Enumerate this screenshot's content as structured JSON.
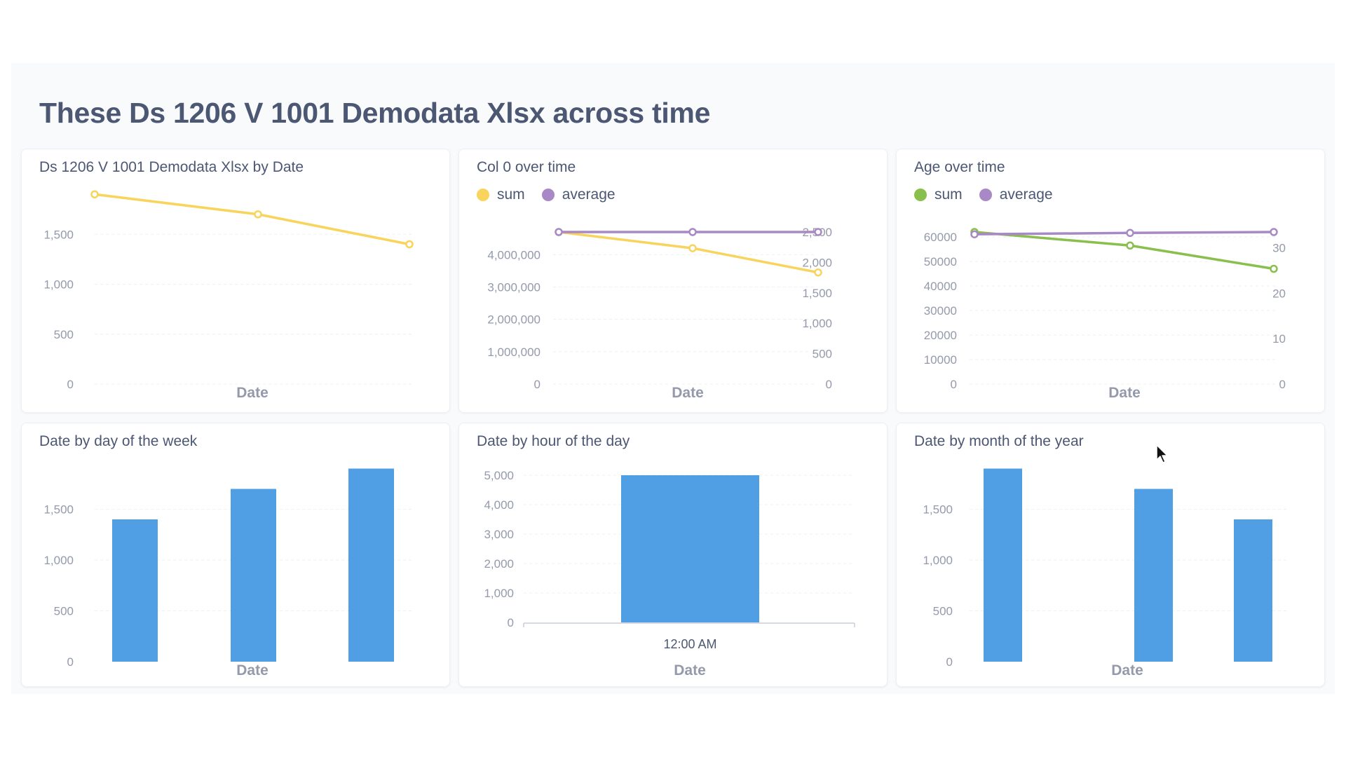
{
  "dashboard": {
    "title": "These Ds 1206 V 1001 Demodata Xlsx across time"
  },
  "colors": {
    "yellow": "#f9d45c",
    "purple": "#a989c5",
    "green": "#88bf4d",
    "blue": "#509ee3",
    "text": "#4c5773",
    "axis": "#949aab",
    "grid": "#eceff3"
  },
  "chart_data": [
    {
      "id": "c1",
      "type": "line",
      "title": "Ds 1206 V 1001 Demodata Xlsx by Date",
      "xlabel": "Date",
      "ylim": [
        0,
        2000
      ],
      "y_ticks": [
        0,
        500,
        1000,
        1500
      ],
      "y_tick_labels": [
        "0",
        "500",
        "1,000",
        "1,500"
      ],
      "series": [
        {
          "color": "#f9d45c",
          "values": [
            1900,
            1700,
            1400
          ]
        }
      ]
    },
    {
      "id": "c2",
      "type": "line",
      "title": "Col 0 over time",
      "xlabel": "Date",
      "legend": [
        "sum",
        "average"
      ],
      "left_ylim": [
        0,
        4700000
      ],
      "left_ticks": [
        0,
        1000000,
        2000000,
        3000000,
        4000000
      ],
      "left_tick_labels": [
        "0",
        "1,000,000",
        "2,000,000",
        "3,000,000",
        "4,000,000"
      ],
      "right_ylim": [
        0,
        2500
      ],
      "right_ticks": [
        0,
        500,
        1000,
        1500,
        2000,
        2500
      ],
      "right_tick_labels": [
        "0",
        "500",
        "1,000",
        "1,500",
        "2,000",
        "2,500"
      ],
      "series": [
        {
          "name": "sum",
          "color": "#f9d45c",
          "axis": "left",
          "values": [
            4700000,
            4200000,
            3450000
          ]
        },
        {
          "name": "average",
          "color": "#a989c5",
          "axis": "right",
          "values": [
            2500,
            2500,
            2500
          ]
        }
      ]
    },
    {
      "id": "c3",
      "type": "line",
      "title": "Age over time",
      "xlabel": "Date",
      "legend": [
        "sum",
        "average"
      ],
      "left_ylim": [
        0,
        62000
      ],
      "left_ticks": [
        0,
        10000,
        20000,
        30000,
        40000,
        50000,
        60000
      ],
      "left_tick_labels": [
        "0",
        "10000",
        "20000",
        "30000",
        "40000",
        "50000",
        "60000"
      ],
      "right_ylim": [
        0,
        33.5
      ],
      "right_ticks": [
        0,
        10,
        20,
        30
      ],
      "right_tick_labels": [
        "0",
        "10",
        "20",
        "30"
      ],
      "series": [
        {
          "name": "sum",
          "color": "#88bf4d",
          "axis": "left",
          "values": [
            62000,
            56500,
            47000
          ]
        },
        {
          "name": "average",
          "color": "#a989c5",
          "axis": "right",
          "values": [
            33,
            33.3,
            33.5
          ]
        }
      ]
    },
    {
      "id": "c4",
      "type": "bar",
      "title": "Date by day of the week",
      "xlabel": "Date",
      "ylim": [
        0,
        2000
      ],
      "y_ticks": [
        0,
        500,
        1000,
        1500
      ],
      "y_tick_labels": [
        "0",
        "500",
        "1,000",
        "1,500"
      ],
      "values": [
        1400,
        1700,
        1900
      ],
      "color": "#509ee3"
    },
    {
      "id": "c5",
      "type": "bar",
      "title": "Date by hour of the day",
      "xlabel": "Date",
      "ylim": [
        0,
        5000
      ],
      "y_ticks": [
        0,
        1000,
        2000,
        3000,
        4000,
        5000
      ],
      "y_tick_labels": [
        "0",
        "1,000",
        "2,000",
        "3,000",
        "4,000",
        "5,000"
      ],
      "categories": [
        "12:00 AM"
      ],
      "values": [
        5000
      ],
      "color": "#509ee3"
    },
    {
      "id": "c6",
      "type": "bar",
      "title": "Date by month of the year",
      "xlabel": "Date",
      "ylim": [
        0,
        2000
      ],
      "y_ticks": [
        0,
        500,
        1000,
        1500
      ],
      "y_tick_labels": [
        "0",
        "500",
        "1,000",
        "1,500"
      ],
      "values": [
        1900,
        1700,
        1400
      ],
      "color": "#509ee3"
    }
  ]
}
